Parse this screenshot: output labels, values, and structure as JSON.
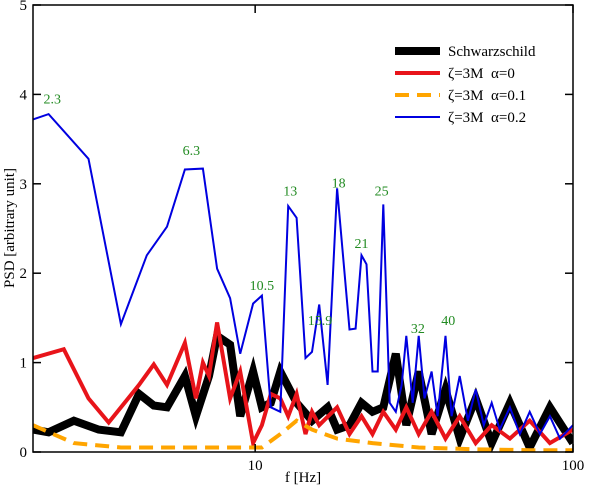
{
  "chart_data": {
    "type": "line",
    "xlabel": "f [Hz]",
    "ylabel": "PSD [arbitrary unit]",
    "xscale": "log",
    "xlim": [
      2,
      100
    ],
    "xticks": [
      10,
      100
    ],
    "ylim": [
      0,
      5
    ],
    "yticks": [
      0,
      1,
      2,
      3,
      4,
      5
    ],
    "legend": "upper right",
    "series": [
      {
        "name": "Schwarzschild",
        "color": "#000000",
        "x": [
          2.0,
          2.24,
          2.69,
          3.22,
          3.78,
          4.31,
          4.8,
          5.28,
          6.01,
          6.51,
          7.16,
          7.59,
          8.34,
          8.97,
          9.85,
          10.5,
          11.2,
          12.0,
          13.5,
          15.1,
          16.9,
          18.1,
          19.8,
          21.6,
          23.4,
          25.3,
          27.7,
          29.9,
          32.7,
          35.9,
          39.7,
          44.0,
          49.4,
          55.5,
          63.3,
          73.1,
          84.6,
          100
        ],
        "values": [
          0.25,
          0.22,
          0.35,
          0.25,
          0.22,
          0.65,
          0.52,
          0.5,
          0.85,
          0.4,
          0.85,
          1.3,
          1.2,
          0.4,
          0.9,
          0.5,
          0.55,
          0.9,
          0.55,
          0.35,
          0.5,
          0.25,
          0.3,
          0.55,
          0.45,
          0.5,
          1.1,
          0.3,
          0.9,
          0.2,
          0.7,
          0.15,
          0.6,
          0.1,
          0.55,
          0.05,
          0.5,
          0.1
        ]
      },
      {
        "name": "ζ=3M  α=0",
        "color": "#e8141a",
        "x": [
          2.0,
          2.5,
          2.99,
          3.46,
          4.31,
          4.8,
          5.28,
          6.01,
          6.51,
          6.85,
          7.16,
          7.59,
          8.34,
          8.97,
          9.85,
          10.5,
          11.2,
          12.0,
          12.7,
          13.5,
          14.4,
          15.1,
          15.9,
          18.1,
          19.8,
          21.6,
          23.4,
          25.3,
          27.7,
          29.9,
          32.7,
          35.9,
          39.7,
          44.0,
          49.4,
          55.5,
          63.3,
          73.1,
          84.6,
          100
        ],
        "values": [
          1.05,
          1.15,
          0.6,
          0.33,
          0.75,
          0.98,
          0.75,
          1.22,
          0.6,
          1.0,
          0.85,
          1.45,
          0.6,
          0.9,
          0.1,
          0.3,
          0.65,
          0.6,
          0.4,
          0.65,
          0.2,
          0.45,
          0.3,
          0.5,
          0.2,
          0.4,
          0.2,
          0.45,
          0.25,
          0.5,
          0.2,
          0.45,
          0.15,
          0.4,
          0.1,
          0.3,
          0.15,
          0.35,
          0.1,
          0.25
        ]
      },
      {
        "name": "ζ=3M  α=0.1",
        "color": "#ffa500",
        "linestyle": "dashed",
        "x": [
          2.0,
          2.69,
          3.78,
          5.28,
          8.34,
          10.5,
          12.0,
          13.5,
          15.1,
          18.1,
          23.4,
          32.7,
          49.4,
          73.1,
          100
        ],
        "values": [
          0.3,
          0.1,
          0.05,
          0.05,
          0.05,
          0.05,
          0.2,
          0.35,
          0.25,
          0.15,
          0.1,
          0.05,
          0.03,
          0.02,
          0.02
        ]
      },
      {
        "name": "ζ=3M  α=0.2",
        "color": "#0000e0",
        "x": [
          2.0,
          2.24,
          2.99,
          3.78,
          4.56,
          5.28,
          6.01,
          6.85,
          7.59,
          8.34,
          8.97,
          9.85,
          10.5,
          11.2,
          12.0,
          12.7,
          13.5,
          14.4,
          15.1,
          15.9,
          16.9,
          18.1,
          19.8,
          20.7,
          21.6,
          22.4,
          23.4,
          24.3,
          25.3,
          26.5,
          27.7,
          28.9,
          29.9,
          31.3,
          32.7,
          34.1,
          35.9,
          37.5,
          39.7,
          41.5,
          44.0,
          46.7,
          49.4,
          52.4,
          55.5,
          58.8,
          63.3,
          68.0,
          73.1,
          78.7,
          84.6,
          91.0,
          100
        ],
        "values": [
          3.72,
          3.78,
          3.28,
          1.43,
          2.2,
          2.52,
          3.16,
          3.17,
          2.05,
          1.72,
          1.1,
          1.66,
          1.75,
          0.5,
          0.45,
          2.75,
          2.62,
          1.05,
          1.12,
          1.65,
          0.75,
          2.95,
          1.37,
          1.38,
          2.2,
          2.1,
          0.9,
          0.9,
          2.77,
          0.55,
          0.45,
          0.75,
          1.3,
          0.55,
          1.3,
          0.6,
          0.9,
          0.4,
          1.3,
          0.4,
          0.85,
          0.35,
          0.7,
          0.3,
          0.55,
          0.25,
          0.5,
          0.2,
          0.45,
          0.2,
          0.4,
          0.15,
          0.3
        ]
      }
    ],
    "annotations": [
      {
        "text": "2.3",
        "x": 2.3,
        "y": 3.9
      },
      {
        "text": "6.3",
        "x": 6.3,
        "y": 3.32
      },
      {
        "text": "10.5",
        "x": 10.5,
        "y": 1.81
      },
      {
        "text": "13",
        "x": 12.9,
        "y": 2.87
      },
      {
        "text": "15.9",
        "x": 16.0,
        "y": 1.42
      },
      {
        "text": "18",
        "x": 18.3,
        "y": 2.96
      },
      {
        "text": "21",
        "x": 21.6,
        "y": 2.28
      },
      {
        "text": "25",
        "x": 25.0,
        "y": 2.87
      },
      {
        "text": "32",
        "x": 32.5,
        "y": 1.33
      },
      {
        "text": "40",
        "x": 40.5,
        "y": 1.42
      }
    ]
  }
}
